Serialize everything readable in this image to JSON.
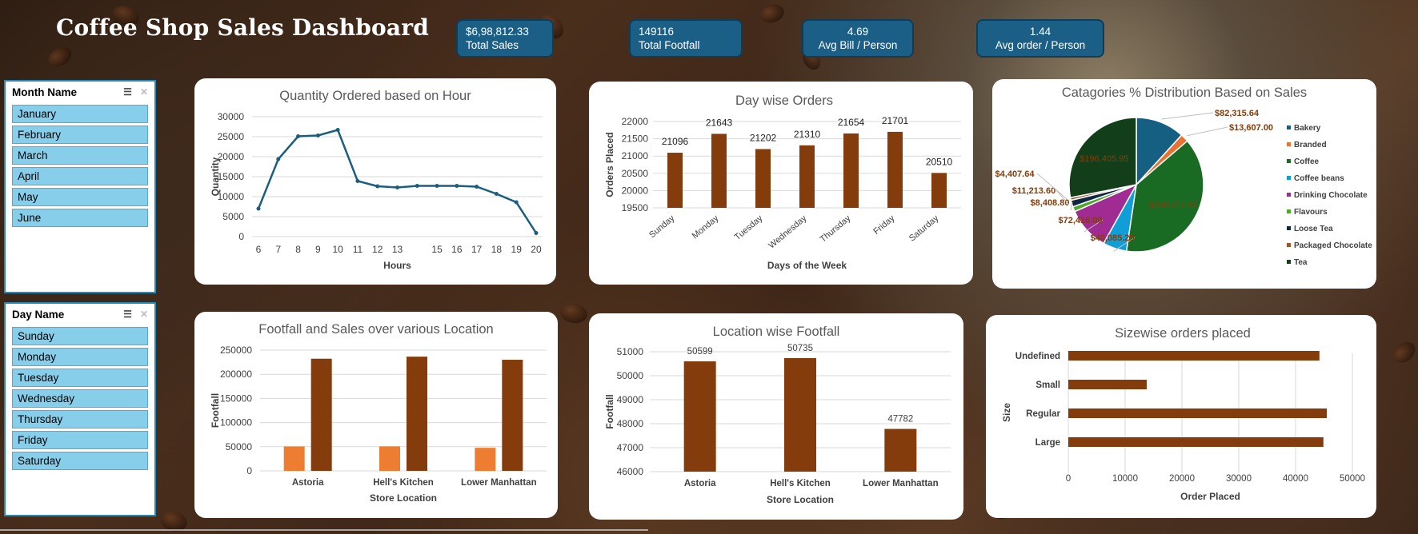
{
  "dashboard_title": "Coffee Shop Sales Dashboard",
  "kpis": [
    {
      "value": "$6,98,812.33",
      "label": "Total Sales"
    },
    {
      "value": "149116",
      "label": "Total Footfall"
    },
    {
      "value": "4.69",
      "label": "Avg Bill / Person"
    },
    {
      "value": "1.44",
      "label": "Avg order / Person"
    }
  ],
  "slicers": {
    "month": {
      "title": "Month Name",
      "items": [
        "January",
        "February",
        "March",
        "April",
        "May",
        "June"
      ]
    },
    "day": {
      "title": "Day Name",
      "items": [
        "Sunday",
        "Monday",
        "Tuesday",
        "Wednesday",
        "Thursday",
        "Friday",
        "Saturday"
      ]
    }
  },
  "colors": {
    "kpi_bg": "#1c5f86",
    "slicer_item": "#87ceeb",
    "bar_dark": "#843c0c",
    "bar_orange": "#ed7d31",
    "line": "#1b5e7e"
  },
  "chart_data": [
    {
      "type": "line",
      "title": "Quantity Ordered based on Hour",
      "xlabel": "Hours",
      "ylabel": "Quantity",
      "x": [
        6,
        7,
        8,
        9,
        10,
        11,
        12,
        13,
        14,
        15,
        16,
        17,
        18,
        19,
        20
      ],
      "y": [
        7000,
        19400,
        25100,
        25300,
        26700,
        13900,
        12600,
        12300,
        12700,
        12700,
        12700,
        12500,
        10700,
        8600,
        900
      ],
      "ylim": [
        0,
        30000
      ],
      "yticks": [
        "30000",
        "25000",
        "20000",
        "15000",
        "10000",
        "5000",
        "0"
      ],
      "xticks": [
        "6",
        "7",
        "8",
        "9",
        "10",
        "11",
        "12",
        "13",
        "15",
        "16",
        "17",
        "18",
        "19",
        "20"
      ]
    },
    {
      "type": "bar",
      "title": "Day wise Orders",
      "xlabel": "Days of the Week",
      "ylabel": "Orders Placed",
      "categories": [
        "Sunday",
        "Monday",
        "Tuesday",
        "Wednesday",
        "Thursday",
        "Friday",
        "Saturday"
      ],
      "values": [
        21096,
        21643,
        21202,
        21310,
        21654,
        21701,
        20510
      ],
      "ylim": [
        19500,
        22000
      ],
      "yticks": [
        "22000",
        "21500",
        "21000",
        "20500",
        "20000",
        "19500"
      ]
    },
    {
      "type": "pie",
      "title": "Catagories % Distribution Based on Sales",
      "slices": [
        {
          "name": "Bakery",
          "value": 82315.64,
          "label": "$82,315.64",
          "color": "#156082"
        },
        {
          "name": "Branded",
          "value": 13607.0,
          "label": "$13,607.00",
          "color": "#e97132"
        },
        {
          "name": "Coffee",
          "value": 269952.45,
          "label": "$269,952.45",
          "color": "#196b24"
        },
        {
          "name": "Coffee beans",
          "value": 40085.25,
          "label": "$40,085.25",
          "color": "#0f9ed5"
        },
        {
          "name": "Drinking Chocolate",
          "value": 72416.0,
          "label": "$72,416.00",
          "color": "#a02b93"
        },
        {
          "name": "Flavours",
          "value": 8408.8,
          "label": "$8,408.80",
          "color": "#4ea72e"
        },
        {
          "name": "Loose Tea",
          "value": 11213.6,
          "label": "$11,213.60",
          "color": "#0e2841"
        },
        {
          "name": "Packaged Chocolate",
          "value": 4407.64,
          "label": "$4,407.64",
          "color": "#a0522d"
        },
        {
          "name": "Tea",
          "value": 196405.95,
          "label": "$196,405.95",
          "color": "#123f1a"
        }
      ]
    },
    {
      "type": "bar",
      "title": "Footfall and Sales over various Location",
      "xlabel": "Store Location",
      "ylabel": "Footfall",
      "categories": [
        "Astoria",
        "Hell's Kitchen",
        "Lower Manhattan"
      ],
      "series": [
        {
          "values": [
            50599,
            50735,
            47782
          ],
          "color": "#ed7d31"
        },
        {
          "values": [
            232244,
            236511,
            230057
          ],
          "color": "#843c0c"
        }
      ],
      "ylim": [
        0,
        250000
      ],
      "yticks": [
        "250000",
        "200000",
        "150000",
        "100000",
        "50000",
        "0"
      ]
    },
    {
      "type": "bar",
      "title": "Location wise Footfall",
      "xlabel": "Store Location",
      "ylabel": "Footfall",
      "categories": [
        "Astoria",
        "Hell's Kitchen",
        "Lower Manhattan"
      ],
      "values": [
        50599,
        50735,
        47782
      ],
      "ylim": [
        46000,
        51000
      ],
      "yticks": [
        "51000",
        "50000",
        "49000",
        "48000",
        "47000",
        "46000"
      ]
    },
    {
      "type": "bar",
      "orientation": "horizontal",
      "title": "Sizewise orders placed",
      "xlabel": "Order Placed",
      "ylabel": "Size",
      "categories": [
        "Undefined",
        "Small",
        "Regular",
        "Large"
      ],
      "values": [
        44200,
        13800,
        45500,
        44900
      ],
      "xlim": [
        0,
        50000
      ],
      "xticks": [
        "0",
        "10000",
        "20000",
        "30000",
        "40000",
        "50000"
      ]
    }
  ]
}
